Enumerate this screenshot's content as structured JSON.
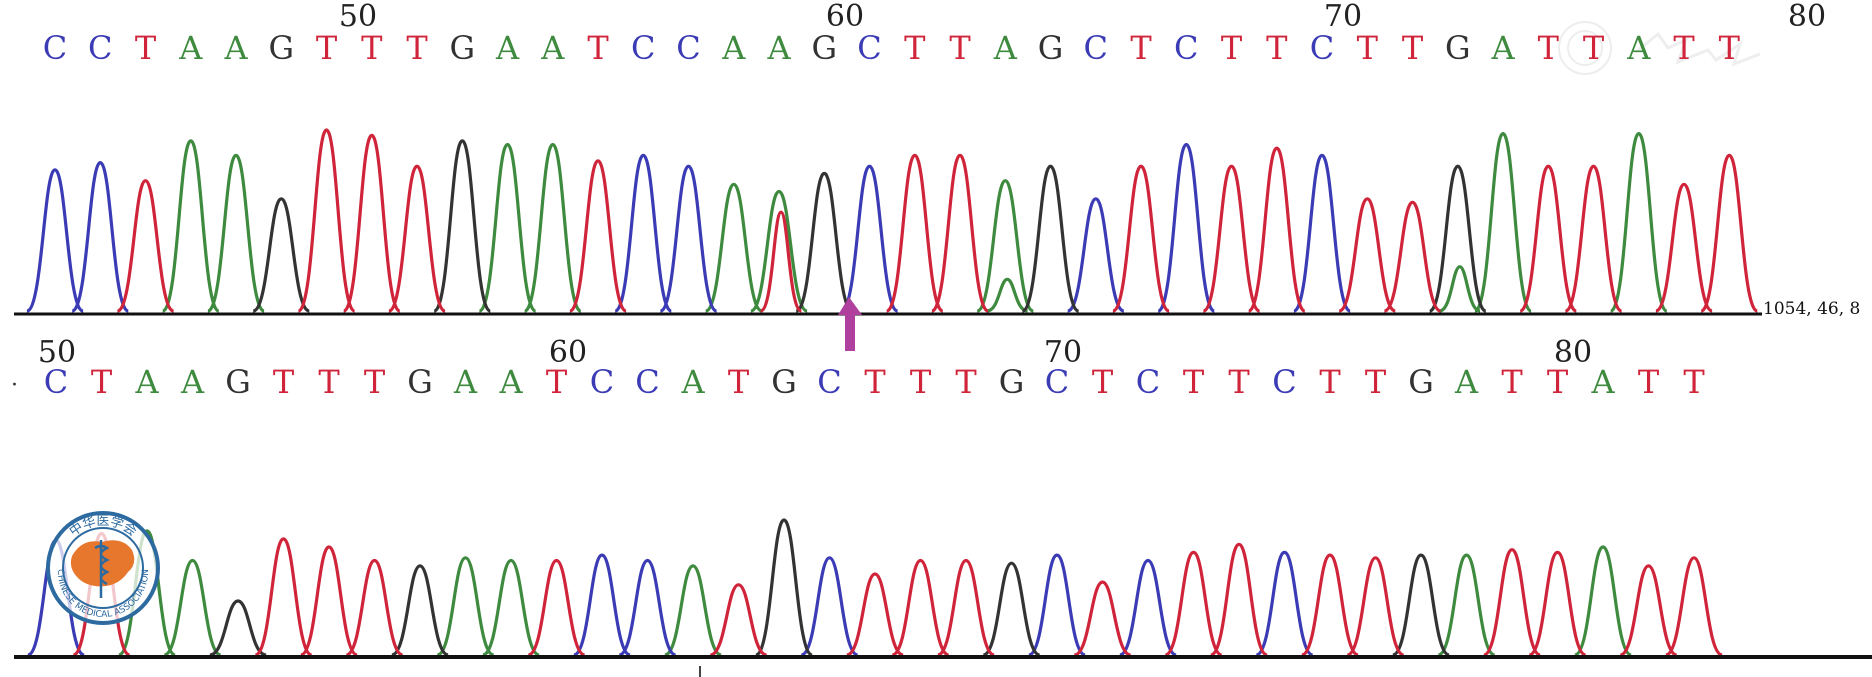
{
  "colors": {
    "A": "#3e8a3e",
    "C": "#3b3bb5",
    "G": "#333333",
    "T": "#d0243a",
    "arrow": "#b0409e",
    "logo_blue": "#2c6aa0",
    "logo_orange": "#e8772e",
    "baseline": "#111111"
  },
  "top_panel": {
    "position_labels": [
      "50",
      "60",
      "70",
      "80"
    ],
    "sequence": [
      "C",
      "C",
      "T",
      "A",
      "A",
      "G",
      "T",
      "T",
      "T",
      "G",
      "A",
      "A",
      "T",
      "C",
      "C",
      "A",
      "A",
      "G",
      "C",
      "T",
      "T",
      "A",
      "G",
      "C",
      "T",
      "C",
      "T",
      "T",
      "C",
      "T",
      "T",
      "G",
      "A",
      "T",
      "T",
      "A",
      "T",
      "T"
    ],
    "secondary_peaks": [
      {
        "base_index": 16,
        "base": "T",
        "level": 0.78
      },
      {
        "base_index": 21,
        "base": "A",
        "level": 0.25
      },
      {
        "base_index": 31,
        "base": "A",
        "level": 0.35
      }
    ],
    "trace_readout": "1054, 46, 8",
    "variant_marker": "arrow-up"
  },
  "bottom_panel": {
    "position_labels": [
      "50",
      "60",
      "70",
      "80"
    ],
    "sequence": [
      "C",
      "T",
      "A",
      "A",
      "G",
      "T",
      "T",
      "T",
      "G",
      "A",
      "A",
      "T",
      "C",
      "C",
      "A",
      "T",
      "G",
      "C",
      "T",
      "T",
      "T",
      "G",
      "C",
      "T",
      "C",
      "T",
      "T",
      "C",
      "T",
      "T",
      "G",
      "A",
      "T",
      "T",
      "A",
      "T",
      "T"
    ]
  },
  "watermark": {
    "logo_text": "CHINESE MEDICAL ASSOCIATION",
    "logo_top_text": "中华医学会"
  }
}
